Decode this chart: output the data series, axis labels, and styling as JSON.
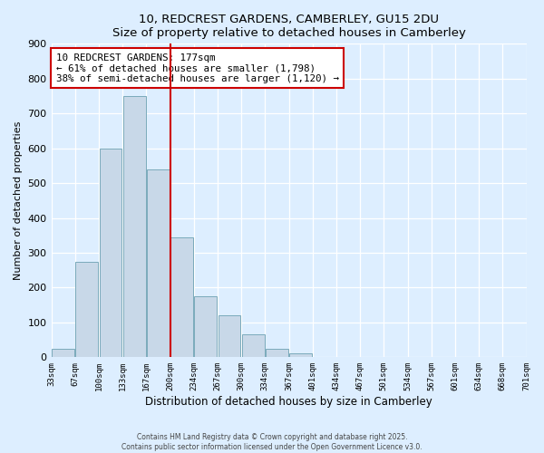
{
  "title": "10, REDCREST GARDENS, CAMBERLEY, GU15 2DU",
  "subtitle": "Size of property relative to detached houses in Camberley",
  "xlabel": "Distribution of detached houses by size in Camberley",
  "ylabel": "Number of detached properties",
  "bar_color": "#c8d8e8",
  "bar_edge_color": "#7aaabb",
  "background_color": "#ddeeff",
  "plot_bg_color": "#ddeeff",
  "grid_color": "#ffffff",
  "vline_color": "#cc0000",
  "vline_x": 4.5,
  "annotation_text": "10 REDCREST GARDENS: 177sqm\n← 61% of detached houses are smaller (1,798)\n38% of semi-detached houses are larger (1,120) →",
  "annotation_box_color": "#ffffff",
  "annotation_edge_color": "#cc0000",
  "tick_labels": [
    "33sqm",
    "67sqm",
    "100sqm",
    "133sqm",
    "167sqm",
    "200sqm",
    "234sqm",
    "267sqm",
    "300sqm",
    "334sqm",
    "367sqm",
    "401sqm",
    "434sqm",
    "467sqm",
    "501sqm",
    "534sqm",
    "567sqm",
    "601sqm",
    "634sqm",
    "668sqm",
    "701sqm"
  ],
  "counts": [
    25,
    275,
    600,
    750,
    540,
    345,
    175,
    120,
    65,
    25,
    10,
    0,
    0,
    0,
    0,
    0,
    0,
    0,
    0,
    0
  ],
  "ylim": [
    0,
    900
  ],
  "yticks": [
    0,
    100,
    200,
    300,
    400,
    500,
    600,
    700,
    800,
    900
  ],
  "footer_line1": "Contains HM Land Registry data © Crown copyright and database right 2025.",
  "footer_line2": "Contains public sector information licensed under the Open Government Licence v3.0."
}
